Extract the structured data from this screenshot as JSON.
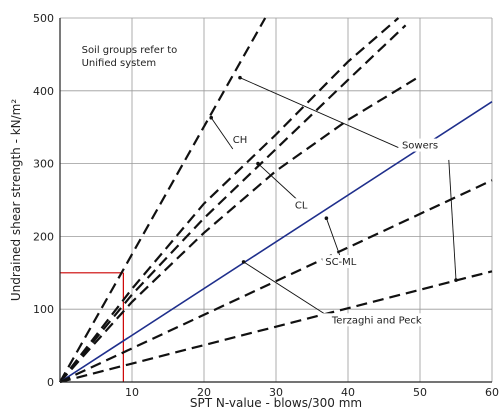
{
  "chart_data": {
    "type": "line",
    "xlabel": "SPT N-value - blows/300 mm",
    "ylabel": "Undrained shear strength - kN/m²",
    "xlim": [
      0,
      60
    ],
    "ylim": [
      0,
      500
    ],
    "x_ticks": [
      "10",
      "20",
      "30",
      "40",
      "50",
      "60"
    ],
    "y_ticks": [
      "0",
      "100",
      "200",
      "300",
      "400",
      "500"
    ],
    "note_lines": [
      "Soil groups refer to",
      "Unified system"
    ],
    "series": [
      {
        "name": "",
        "style": "dashed",
        "color": "#111111",
        "points": [
          [
            0,
            0
          ],
          [
            28.5,
            500
          ]
        ]
      },
      {
        "name": "",
        "style": "dashed",
        "color": "#111111",
        "points": [
          [
            0,
            0
          ],
          [
            10,
            128
          ],
          [
            20,
            245
          ],
          [
            30,
            340
          ],
          [
            40,
            440
          ],
          [
            47,
            500
          ]
        ]
      },
      {
        "name": "",
        "style": "dashed",
        "color": "#111111",
        "points": [
          [
            0,
            0
          ],
          [
            10,
            120
          ],
          [
            20,
            225
          ],
          [
            30,
            320
          ],
          [
            40,
            415
          ],
          [
            48,
            490
          ]
        ]
      },
      {
        "name": "",
        "style": "dashed",
        "color": "#111111",
        "points": [
          [
            0,
            0
          ],
          [
            10,
            110
          ],
          [
            20,
            205
          ],
          [
            30,
            290
          ],
          [
            40,
            360
          ],
          [
            50,
            420
          ]
        ]
      },
      {
        "name": "",
        "style": "solid",
        "color": "#1f2f8c",
        "points": [
          [
            0,
            0
          ],
          [
            60,
            385
          ]
        ]
      },
      {
        "name": "",
        "style": "dashed",
        "color": "#111111",
        "points": [
          [
            0,
            0
          ],
          [
            60,
            277
          ]
        ]
      },
      {
        "name": "",
        "style": "dashed",
        "color": "#111111",
        "points": [
          [
            0,
            0
          ],
          [
            60,
            152
          ]
        ]
      }
    ],
    "reference_lines": {
      "color": "#cc0000",
      "segments": [
        [
          [
            0,
            150
          ],
          [
            8.8,
            150
          ]
        ],
        [
          [
            8.8,
            150
          ],
          [
            8.8,
            0
          ]
        ]
      ]
    },
    "annotations": [
      {
        "text": "CH",
        "at": [
          25,
          330
        ],
        "leaders": [
          [
            [
              24,
              320
            ],
            [
              21,
              363
            ]
          ]
        ]
      },
      {
        "text": "CL",
        "at": [
          33.5,
          240
        ],
        "leaders": [
          [
            [
              33,
              250
            ],
            [
              27.5,
              300
            ]
          ]
        ]
      },
      {
        "text": "Sowers",
        "at": [
          50,
          322
        ],
        "leaders": [
          [
            [
              47,
              322
            ],
            [
              25,
              418
            ]
          ],
          [
            [
              54,
              305
            ],
            [
              55,
              140
            ]
          ]
        ]
      },
      {
        "text": "SC-ML",
        "at": [
          39,
          162
        ],
        "leaders": [
          [
            [
              39,
              170
            ],
            [
              37,
              225
            ]
          ]
        ]
      },
      {
        "text": "Terzaghi and Peck",
        "at": [
          44,
          82
        ],
        "leaders": [
          [
            [
              37,
              92
            ],
            [
              25.5,
              165
            ]
          ]
        ]
      }
    ]
  }
}
